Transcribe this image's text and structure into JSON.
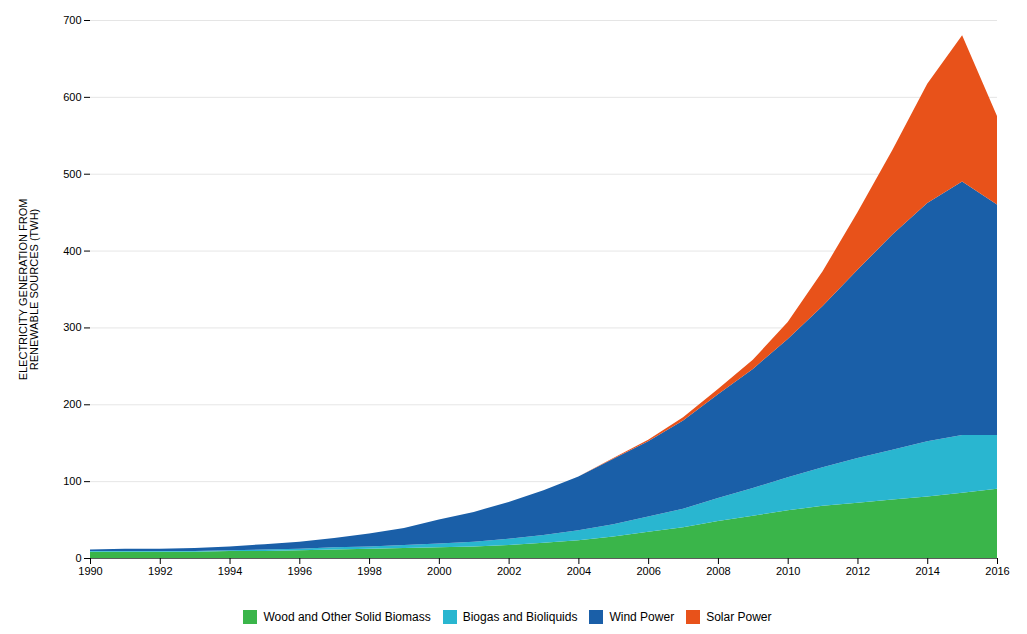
{
  "chart_data": {
    "type": "area",
    "stacked": true,
    "ylabel": "ELECTRICITY GENERATION FROM\nRENEWABLE SOURCES (TWH)",
    "x": [
      1990,
      1991,
      1992,
      1993,
      1994,
      1995,
      1996,
      1997,
      1998,
      1999,
      2000,
      2001,
      2002,
      2003,
      2004,
      2005,
      2006,
      2007,
      2008,
      2009,
      2010,
      2011,
      2012,
      2013,
      2014,
      2015,
      2016
    ],
    "series": [
      {
        "name": "Wood and Other Solid Biomass",
        "color": "#3ab54a",
        "values": [
          8,
          8,
          8,
          8,
          9,
          9,
          10,
          11,
          12,
          13,
          14,
          15,
          17,
          20,
          23,
          28,
          34,
          40,
          48,
          55,
          62,
          68,
          72,
          76,
          80,
          85,
          90
        ]
      },
      {
        "name": "Biogas and Bioliquids",
        "color": "#29b6d0",
        "values": [
          1,
          1,
          1,
          1,
          1,
          2,
          2,
          3,
          3,
          4,
          5,
          6,
          8,
          10,
          13,
          16,
          20,
          24,
          30,
          36,
          43,
          50,
          58,
          65,
          72,
          75,
          70
        ]
      },
      {
        "name": "Wind Power",
        "color": "#1a5fa8",
        "values": [
          2,
          3,
          3,
          4,
          5,
          7,
          9,
          12,
          17,
          22,
          31,
          39,
          48,
          58,
          70,
          85,
          98,
          115,
          135,
          155,
          180,
          210,
          245,
          280,
          310,
          330,
          300
        ]
      },
      {
        "name": "Solar Power",
        "color": "#e8521a",
        "values": [
          0,
          0,
          0,
          0,
          0,
          0,
          0,
          0,
          0,
          0,
          0,
          0,
          0,
          0,
          0,
          1,
          2,
          4,
          7,
          12,
          22,
          45,
          75,
          110,
          155,
          190,
          115
        ]
      }
    ],
    "xlim": [
      1990,
      2016
    ],
    "xticks": [
      1990,
      1992,
      1994,
      1996,
      1998,
      2000,
      2002,
      2004,
      2006,
      2008,
      2010,
      2012,
      2014,
      2016
    ],
    "ylim": [
      0,
      700
    ],
    "yticks": [
      0,
      100,
      200,
      300,
      400,
      500,
      600,
      700
    ],
    "grid": true,
    "legend": "bottom"
  }
}
